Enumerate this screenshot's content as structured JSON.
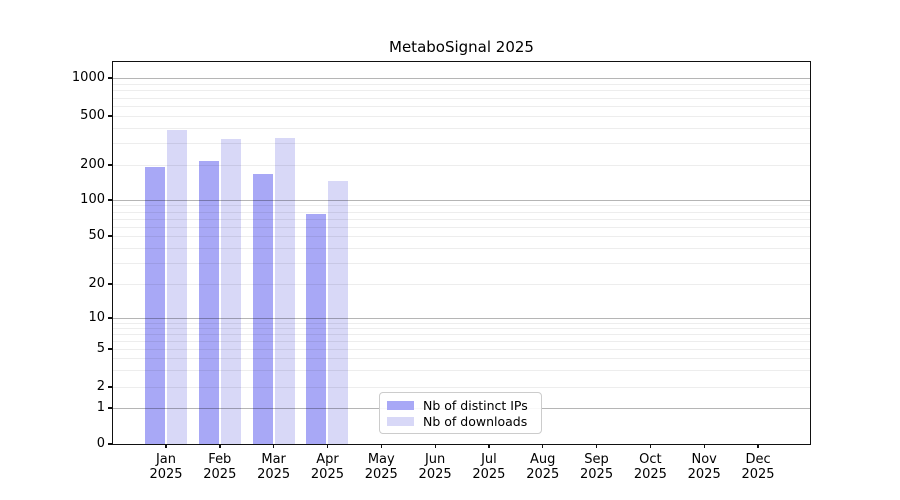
{
  "figure": {
    "title": "MetaboSignal 2025"
  },
  "chart_data": {
    "type": "bar",
    "title": "MetaboSignal 2025",
    "xlabel": "",
    "ylabel": "",
    "yscale": "symlog",
    "ylim": [
      0,
      1000
    ],
    "yticks": [
      0,
      1,
      2,
      5,
      10,
      20,
      50,
      100,
      200,
      500,
      1000
    ],
    "ytick_labels": [
      "0",
      "1",
      "2",
      "5",
      "10",
      "20",
      "50",
      "100",
      "200",
      "500",
      "1000"
    ],
    "grid": "horizontal log minor+major gridlines",
    "year": "2025",
    "categories": [
      "Jan",
      "Feb",
      "Mar",
      "Apr",
      "May",
      "Jun",
      "Jul",
      "Aug",
      "Sep",
      "Oct",
      "Nov",
      "Dec"
    ],
    "series": [
      {
        "name": "Nb of distinct IPs",
        "color": "#a8a8f6",
        "values": [
          194,
          217,
          168,
          77,
          null,
          null,
          null,
          null,
          null,
          null,
          null,
          null
        ]
      },
      {
        "name": "Nb of downloads",
        "color": "#d8d8f7",
        "values": [
          382,
          326,
          331,
          147,
          null,
          null,
          null,
          null,
          null,
          null,
          null,
          null
        ]
      }
    ],
    "legend": {
      "position": "inside-lower-center",
      "entries": [
        "Nb of distinct IPs",
        "Nb of downloads"
      ]
    }
  }
}
